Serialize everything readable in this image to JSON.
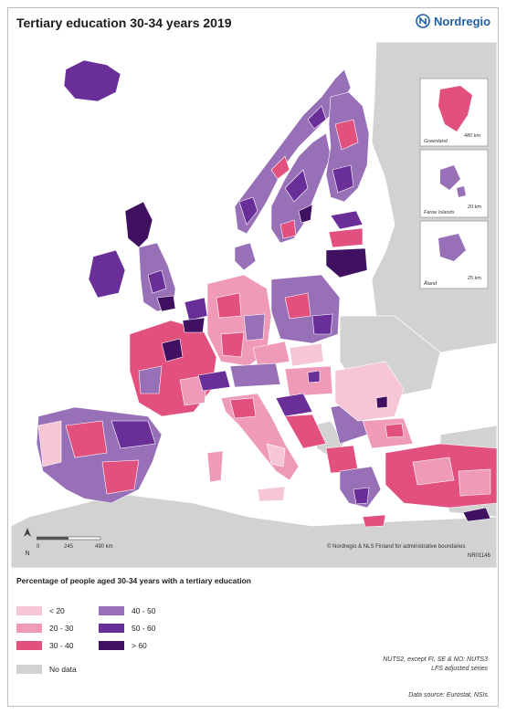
{
  "title": "Tertiary education 30-34 years 2019",
  "brand": {
    "name": "Nordregio",
    "color": "#1f5fa6"
  },
  "colors": {
    "lt20": "#f6c6d6",
    "c20_30": "#ee9ab8",
    "c30_40": "#e2507e",
    "c40_50": "#9870b8",
    "c50_60": "#6a2e98",
    "gt60": "#3f1160",
    "nodata": "#d2d2d2",
    "sea": "#ffffff"
  },
  "insets": [
    {
      "name": "Greenland",
      "scale": "480 km"
    },
    {
      "name": "Faroe Islands",
      "scale": "20 km"
    },
    {
      "name": "Åland",
      "scale": "25 km"
    }
  ],
  "scalebar": {
    "ticks": [
      "0",
      "245",
      "490 km"
    ]
  },
  "north_label": "N",
  "copyright": "© Nordregio & NLS Finland for administrative boundaries",
  "map_code": "NR01146",
  "legend": {
    "title": "Percentage of people aged 30-34 years with a tertiary education",
    "items": [
      {
        "label": "< 20",
        "color": "#f6c6d6"
      },
      {
        "label": "20 - 30",
        "color": "#ee9ab8"
      },
      {
        "label": "30 - 40",
        "color": "#e2507e"
      },
      {
        "label": "40 - 50",
        "color": "#9870b8"
      },
      {
        "label": "50 - 60",
        "color": "#6a2e98"
      },
      {
        "label": "> 60",
        "color": "#3f1160"
      }
    ],
    "nodata_label": "No data"
  },
  "notes": {
    "line1": "NUTS2, except FI, SE & NO: NUTS3",
    "line2": "LFS adjusted series"
  },
  "source": "Data source: Eurostat, NSIs"
}
